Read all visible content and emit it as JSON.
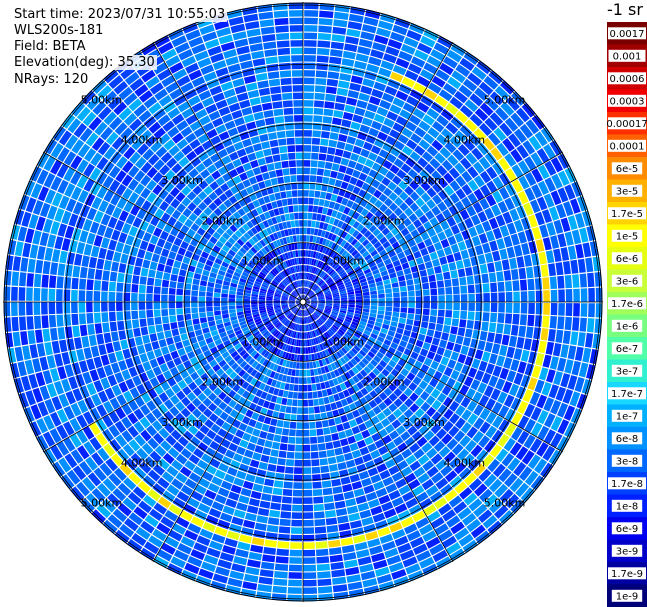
{
  "header": {
    "start_time": "Start time: 2023/07/31 10:55:03",
    "instrument": "WLS200s-181",
    "field": "Field: BETA",
    "elevation": "Elevation(deg): 35.30",
    "nrays": "NRays: 120"
  },
  "colorbar": {
    "title": "-1 sr",
    "labels": [
      "0.0017",
      "0.001",
      "0.0006",
      "0.0003",
      "0.00017",
      "0.0001",
      "6e-5",
      "3e-5",
      "1.7e-5",
      "1e-5",
      "6e-6",
      "3e-6",
      "1.7e-6",
      "1e-6",
      "6e-7",
      "3e-7",
      "1.7e-7",
      "1e-7",
      "6e-8",
      "3e-8",
      "1.7e-8",
      "1e-8",
      "6e-9",
      "3e-9",
      "1.7e-9",
      "1e-9"
    ],
    "colors": [
      "#7a0000",
      "#a00000",
      "#d00000",
      "#f00000",
      "#ff3000",
      "#ff6000",
      "#ff8c00",
      "#ffb000",
      "#ffd400",
      "#ffff00",
      "#e6ff10",
      "#c8ff38",
      "#a0ff5a",
      "#78ff80",
      "#50ffa8",
      "#30f0d0",
      "#18d8ff",
      "#00b0ff",
      "#0090ff",
      "#0068ff",
      "#0040ff",
      "#0020ff",
      "#0000f0",
      "#0000c8",
      "#0000a0",
      "#000078"
    ]
  },
  "chart_data": {
    "type": "heatmap",
    "projection": "polar PPI",
    "n_rays": 120,
    "field": "BETA",
    "range_rings_km": [
      1.0,
      2.0,
      3.0,
      4.0,
      5.0
    ],
    "ring_labels": [
      "1.00km",
      "2.00km",
      "3.00km",
      "4.00km",
      "5.00km"
    ],
    "max_range_km": 5.0,
    "value_scale": "log",
    "value_range": [
      1e-09,
      0.0017
    ],
    "background_value": 3e-08,
    "enhanced_band": {
      "range_km": 4.1,
      "value": 1e-05,
      "azimuth_deg": [
        -150,
        70
      ]
    }
  }
}
